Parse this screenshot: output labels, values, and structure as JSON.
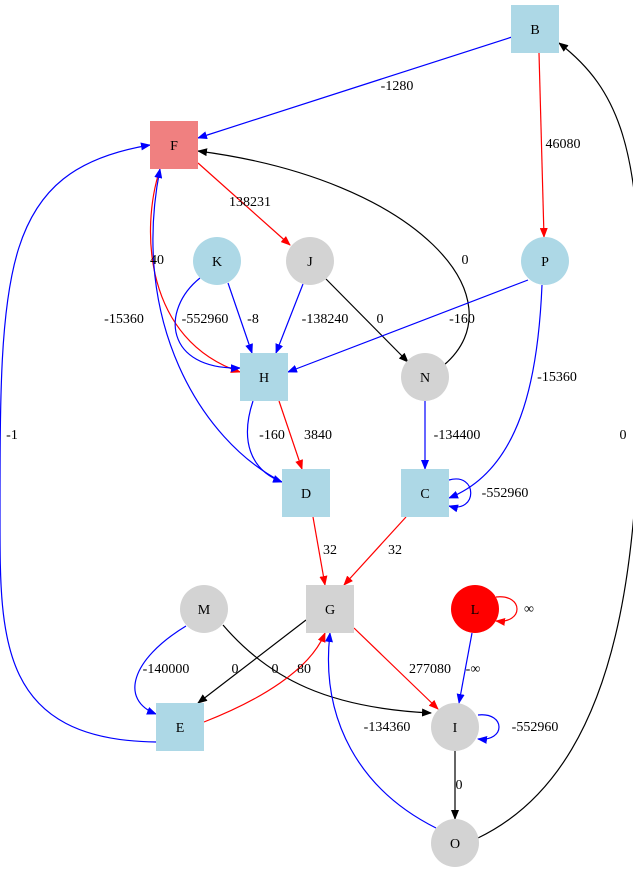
{
  "nodes": {
    "B": {
      "label": "B",
      "shape": "box",
      "fill": "#add8e6"
    },
    "F": {
      "label": "F",
      "shape": "box",
      "fill": "#f08080"
    },
    "J": {
      "label": "J",
      "shape": "circle",
      "fill": "#d3d3d3"
    },
    "K": {
      "label": "K",
      "shape": "circle",
      "fill": "#add8e6"
    },
    "P": {
      "label": "P",
      "shape": "circle",
      "fill": "#add8e6"
    },
    "H": {
      "label": "H",
      "shape": "box",
      "fill": "#add8e6"
    },
    "N": {
      "label": "N",
      "shape": "circle",
      "fill": "#d3d3d3"
    },
    "D": {
      "label": "D",
      "shape": "box",
      "fill": "#add8e6"
    },
    "C": {
      "label": "C",
      "shape": "box",
      "fill": "#add8e6"
    },
    "M": {
      "label": "M",
      "shape": "circle",
      "fill": "#d3d3d3"
    },
    "G": {
      "label": "G",
      "shape": "box",
      "fill": "#d3d3d3"
    },
    "L": {
      "label": "L",
      "shape": "circle",
      "fill": "#ff0000"
    },
    "E": {
      "label": "E",
      "shape": "box",
      "fill": "#add8e6"
    },
    "I": {
      "label": "I",
      "shape": "circle",
      "fill": "#d3d3d3"
    },
    "O": {
      "label": "O",
      "shape": "circle",
      "fill": "#d3d3d3"
    }
  },
  "edges": [
    {
      "id": "B-F",
      "from": "B",
      "to": "F",
      "label": "-1280",
      "color": "#0000ff"
    },
    {
      "id": "B-P",
      "from": "B",
      "to": "P",
      "label": "46080",
      "color": "#ff0000"
    },
    {
      "id": "F-J",
      "from": "F",
      "to": "J",
      "label": "138231",
      "color": "#ff0000"
    },
    {
      "id": "F-H",
      "from": "F",
      "to": "H",
      "label": "40",
      "color": "#ff0000"
    },
    {
      "id": "K-H-1",
      "from": "K",
      "to": "H",
      "label": "-552960",
      "color": "#0000ff"
    },
    {
      "id": "K-H-2",
      "from": "K",
      "to": "H",
      "label": "-8",
      "color": "#0000ff"
    },
    {
      "id": "J-H",
      "from": "J",
      "to": "H",
      "label": "-138240",
      "color": "#0000ff"
    },
    {
      "id": "J-N",
      "from": "J",
      "to": "N",
      "label": "0",
      "color": "#000000"
    },
    {
      "id": "N-F",
      "from": "N",
      "to": "F",
      "label": "0",
      "color": "#000000"
    },
    {
      "id": "P-H",
      "from": "P",
      "to": "H",
      "label": "-160",
      "color": "#0000ff"
    },
    {
      "id": "P-C",
      "from": "P",
      "to": "C",
      "label": "-15360",
      "color": "#0000ff"
    },
    {
      "id": "D-F",
      "from": "D",
      "to": "F",
      "label": "-15360",
      "color": "#0000ff"
    },
    {
      "id": "H-D-1",
      "from": "H",
      "to": "D",
      "label": "-160",
      "color": "#0000ff"
    },
    {
      "id": "H-D-2",
      "from": "H",
      "to": "D",
      "label": "3840",
      "color": "#ff0000"
    },
    {
      "id": "N-C",
      "from": "N",
      "to": "C",
      "label": "-134400",
      "color": "#0000ff"
    },
    {
      "id": "C-C",
      "from": "C",
      "to": "C",
      "label": "-552960",
      "color": "#0000ff"
    },
    {
      "id": "D-G",
      "from": "D",
      "to": "G",
      "label": "32",
      "color": "#ff0000"
    },
    {
      "id": "C-G",
      "from": "C",
      "to": "G",
      "label": "32",
      "color": "#ff0000"
    },
    {
      "id": "E-F",
      "from": "E",
      "to": "F",
      "label": "-1",
      "color": "#0000ff"
    },
    {
      "id": "O-B",
      "from": "O",
      "to": "B",
      "label": "0",
      "color": "#000000"
    },
    {
      "id": "M-E",
      "from": "M",
      "to": "E",
      "label": "-140000",
      "color": "#0000ff"
    },
    {
      "id": "G-E",
      "from": "G",
      "to": "E",
      "label": "0",
      "color": "#000000"
    },
    {
      "id": "M-I",
      "from": "M",
      "to": "I",
      "label": "0",
      "color": "#000000"
    },
    {
      "id": "E-G",
      "from": "E",
      "to": "G",
      "label": "80",
      "color": "#ff0000"
    },
    {
      "id": "G-I",
      "from": "G",
      "to": "I",
      "label": "277080",
      "color": "#ff0000"
    },
    {
      "id": "L-L",
      "from": "L",
      "to": "L",
      "label": "∞",
      "color": "#ff0000"
    },
    {
      "id": "L-I",
      "from": "L",
      "to": "I",
      "label": "-∞",
      "color": "#0000ff"
    },
    {
      "id": "I-I",
      "from": "I",
      "to": "I",
      "label": "-552960",
      "color": "#0000ff"
    },
    {
      "id": "O-G",
      "from": "O",
      "to": "G",
      "label": "-134360",
      "color": "#0000ff"
    },
    {
      "id": "I-O",
      "from": "I",
      "to": "O",
      "label": "0",
      "color": "#000000"
    }
  ]
}
